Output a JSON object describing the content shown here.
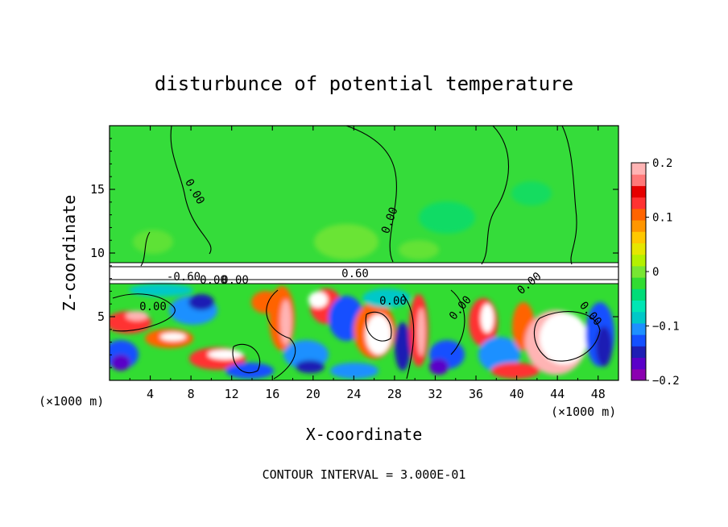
{
  "chart_data": {
    "type": "heatmap",
    "title": "disturbunce of potential temperature",
    "xlabel": "X-coordinate",
    "ylabel": "Z-coordinate",
    "x_unit": "(×1000 m)",
    "z_unit": "(×1000 m)",
    "xlim": [
      0,
      50
    ],
    "zlim": [
      0,
      20
    ],
    "x_ticks": [
      "4",
      "8",
      "12",
      "16",
      "20",
      "24",
      "28",
      "32",
      "36",
      "40",
      "44",
      "48"
    ],
    "z_ticks": [
      "5",
      "10",
      "15"
    ],
    "colorbar": {
      "range": [
        -0.2,
        0.2
      ],
      "tick_labels": [
        "0.2",
        "0.1",
        "0",
        "−0.1",
        "−0.2"
      ],
      "colors": [
        "#8b00b0",
        "#5a00c8",
        "#1e1eb4",
        "#1450ff",
        "#1e90ff",
        "#00c8c8",
        "#00e6b4",
        "#00dc78",
        "#32dc32",
        "#78e632",
        "#b4f000",
        "#e6e600",
        "#ffc800",
        "#ff9600",
        "#ff6400",
        "#ff3232",
        "#e60000",
        "#ff7878",
        "#ffb4b4"
      ]
    },
    "contour_labels": [
      "0.00",
      "0.00",
      "0.00",
      "-0.60",
      "0.00",
      "0.60",
      "0.00",
      "0.00",
      "0.00",
      "0.00",
      "0.00"
    ],
    "footer": "CONTOUR INTERVAL = 3.000E-01"
  }
}
